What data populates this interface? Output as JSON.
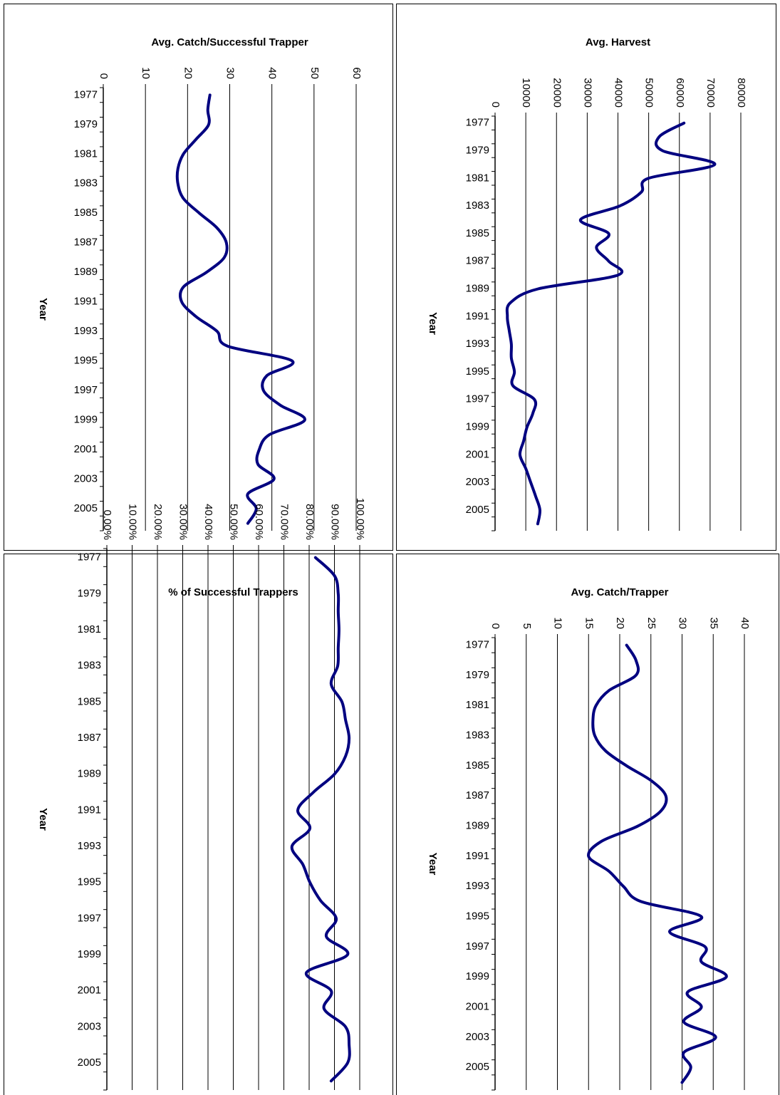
{
  "charts": [
    {
      "chart_data": {
        "type": "line",
        "title": "Avg. Catch/Successful Trapper",
        "y_label": "Year",
        "categories": [
          1977,
          null,
          1979,
          null,
          1981,
          null,
          1983,
          null,
          1985,
          null,
          1987,
          null,
          1989,
          null,
          1991,
          null,
          1993,
          null,
          1995,
          null,
          1997,
          null,
          1999,
          null,
          2001,
          null,
          2003,
          null,
          2005,
          null
        ],
        "series": [
          {
            "color": "#000080",
            "values": [
              25.3,
              24.8,
              25,
              22,
              19,
              17.7,
              17.7,
              19,
              22.8,
              27,
              29.2,
              28.7,
              24.5,
              19,
              18.6,
              22,
              27,
              29.5,
              44.8,
              38.8,
              38,
              42,
              47.8,
              39.4,
              37,
              36.7,
              40.5,
              34.3,
              36.3,
              34.3
            ]
          }
        ],
        "xlim": [
          0,
          60
        ],
        "xticks": [
          0,
          10,
          20,
          30,
          40,
          50,
          60
        ],
        "grid": true
      }
    },
    {
      "chart_data": {
        "type": "line",
        "title": "Avg. Harvest",
        "y_label": "Year",
        "categories": [
          1977,
          null,
          1979,
          null,
          1981,
          null,
          1983,
          null,
          1985,
          null,
          1987,
          null,
          1989,
          null,
          1991,
          null,
          1993,
          null,
          1995,
          null,
          1997,
          null,
          1999,
          null,
          2001,
          null,
          2003,
          null,
          2005,
          null
        ],
        "series": [
          {
            "color": "#000080",
            "values": [
              61500,
              53400,
              54500,
              71500,
              49900,
              47600,
              40600,
              27800,
              37000,
              33000,
              37000,
              40000,
              14000,
              5000,
              4000,
              4600,
              5300,
              5300,
              6300,
              5800,
              12800,
              12300,
              10400,
              9300,
              8100,
              10000,
              11600,
              13200,
              14600,
              13900
            ]
          }
        ],
        "xlim": [
          0,
          80000
        ],
        "xticks": [
          0,
          10000,
          20000,
          30000,
          40000,
          50000,
          60000,
          70000,
          80000
        ],
        "grid": true
      }
    },
    {
      "chart_data": {
        "type": "line",
        "title": "% of Successful Trappers",
        "y_label": "Year",
        "categories": [
          1977,
          null,
          1979,
          null,
          1981,
          null,
          1983,
          null,
          1985,
          null,
          1987,
          null,
          1989,
          null,
          1991,
          null,
          1993,
          null,
          1995,
          null,
          1997,
          null,
          1999,
          null,
          2001,
          null,
          2003,
          null,
          2005,
          null
        ],
        "series": [
          {
            "color": "#000080",
            "values": [
              82.5,
              90,
              91.5,
              91.5,
              91.8,
              91.5,
              91.3,
              88.7,
              93,
              94.4,
              95.8,
              94.4,
              90,
              81.7,
              75.5,
              80.3,
              73.2,
              77.5,
              80.3,
              84.5,
              90.7,
              86.8,
              95.2,
              78.9,
              88.7,
              85.9,
              94.4,
              95.8,
              95.2,
              88.7
            ]
          }
        ],
        "xlim": [
          0,
          100
        ],
        "xticks": [
          {
            "value": 0,
            "label": "0.00%"
          },
          {
            "value": 10,
            "label": "10.00%"
          },
          {
            "value": 20,
            "label": "20.00%"
          },
          {
            "value": 30,
            "label": "30.00%"
          },
          {
            "value": 40,
            "label": "40.00%"
          },
          {
            "value": 50,
            "label": "50.00%"
          },
          {
            "value": 60,
            "label": "60.00%"
          },
          {
            "value": 70,
            "label": "70.00%"
          },
          {
            "value": 80,
            "label": "80.00%"
          },
          {
            "value": 90,
            "label": "90.00%"
          },
          {
            "value": 100,
            "label": "100.00%"
          }
        ],
        "grid": true
      }
    },
    {
      "chart_data": {
        "type": "line",
        "title": "Avg. Catch/Trapper",
        "y_label": "Year",
        "categories": [
          1977,
          null,
          1979,
          null,
          1981,
          null,
          1983,
          null,
          1985,
          null,
          1987,
          null,
          1989,
          null,
          1991,
          null,
          1993,
          null,
          1995,
          null,
          1997,
          null,
          1999,
          null,
          2001,
          null,
          2003,
          null,
          2005,
          null
        ],
        "series": [
          {
            "color": "#000080",
            "values": [
              21.1,
              22.6,
              22.6,
              18.3,
              16.2,
              15.7,
              16,
              17.7,
              21.1,
              25.1,
              27.4,
              26.6,
              22.9,
              17.1,
              15,
              18.3,
              20.6,
              23.4,
              33.1,
              28,
              33.7,
              33.1,
              37.1,
              30.9,
              33.1,
              30.3,
              35.4,
              30.3,
              31.4,
              30
            ]
          }
        ],
        "xlim": [
          0,
          40
        ],
        "xticks": [
          0,
          5,
          10,
          15,
          20,
          25,
          30,
          35,
          40
        ],
        "grid": true
      }
    }
  ]
}
